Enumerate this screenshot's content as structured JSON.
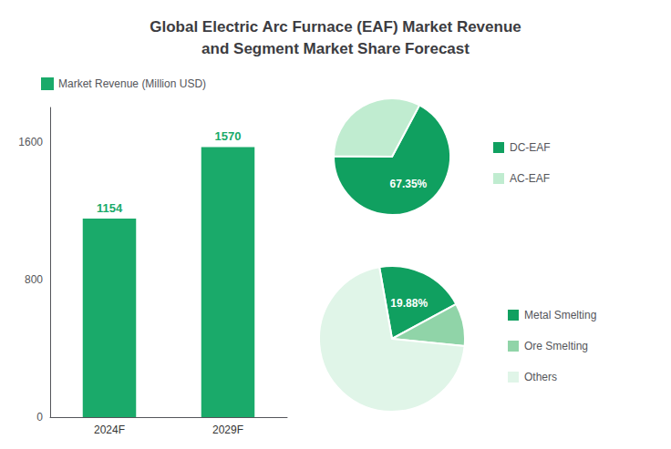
{
  "chart_data": [
    {
      "type": "bar",
      "title": "Global Electric Arc Furnace (EAF) Market Revenue\nand Segment Market Share Forecast",
      "categories": [
        "2024F",
        "2029F"
      ],
      "series": [
        {
          "name": "Market Revenue (Million USD)",
          "color": "#1aaa6a",
          "values": [
            1154,
            1570
          ]
        }
      ],
      "ylim": [
        0,
        1800
      ],
      "yticks": [
        0,
        800,
        1600
      ],
      "data_labels": true,
      "legend": "upper left"
    },
    {
      "type": "pie",
      "categories": [
        "DC-EAF",
        "AC-EAF"
      ],
      "values": [
        67.35,
        32.65
      ],
      "value_labels": [
        "67.35%",
        null
      ],
      "colors": [
        "#10a060",
        "#c0ecd0"
      ],
      "data_labels": true,
      "legend": "right"
    },
    {
      "type": "pie",
      "categories": [
        "Metal Smelting",
        "Ore Smelting",
        "Others"
      ],
      "values": [
        19.88,
        9.5,
        70.62
      ],
      "value_labels": [
        "19.88%",
        null,
        null
      ],
      "colors": [
        "#10a060",
        "#90d4a8",
        "#e0f5e8"
      ],
      "data_labels": true,
      "legend": "right"
    }
  ]
}
